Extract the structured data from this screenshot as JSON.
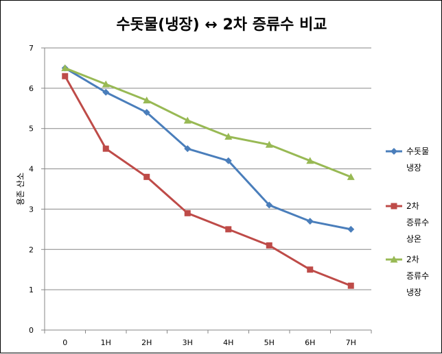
{
  "chart_data": {
    "type": "line",
    "title": "수돗물(냉장) ↔ 2차 증류수 비교",
    "xlabel": "",
    "ylabel": "용존 산소",
    "categories": [
      "0",
      "1H",
      "2H",
      "3H",
      "4H",
      "5H",
      "6H",
      "7H"
    ],
    "ylim": [
      0,
      7
    ],
    "yticks": [
      "0",
      "1",
      "2",
      "3",
      "4",
      "5",
      "6",
      "7"
    ],
    "grid": true,
    "legend_position": "right",
    "series": [
      {
        "name": "수돗물 냉장",
        "legend_lines": [
          "수돗물",
          "냉장"
        ],
        "color": "#4a7ebb",
        "marker": "diamond",
        "values": [
          6.5,
          5.9,
          5.4,
          4.5,
          4.2,
          3.1,
          2.7,
          2.5
        ]
      },
      {
        "name": "2차 증류수 상온",
        "legend_lines": [
          "2차",
          "증류수",
          "상온"
        ],
        "color": "#be4b48",
        "marker": "square",
        "values": [
          6.3,
          4.5,
          3.8,
          2.9,
          2.5,
          2.1,
          1.5,
          1.1
        ]
      },
      {
        "name": "2차 증류수 냉장",
        "legend_lines": [
          "2차",
          "증류수",
          "냉장"
        ],
        "color": "#98b954",
        "marker": "triangle",
        "values": [
          6.5,
          6.1,
          5.7,
          5.2,
          4.8,
          4.6,
          4.2,
          3.8
        ]
      }
    ]
  }
}
